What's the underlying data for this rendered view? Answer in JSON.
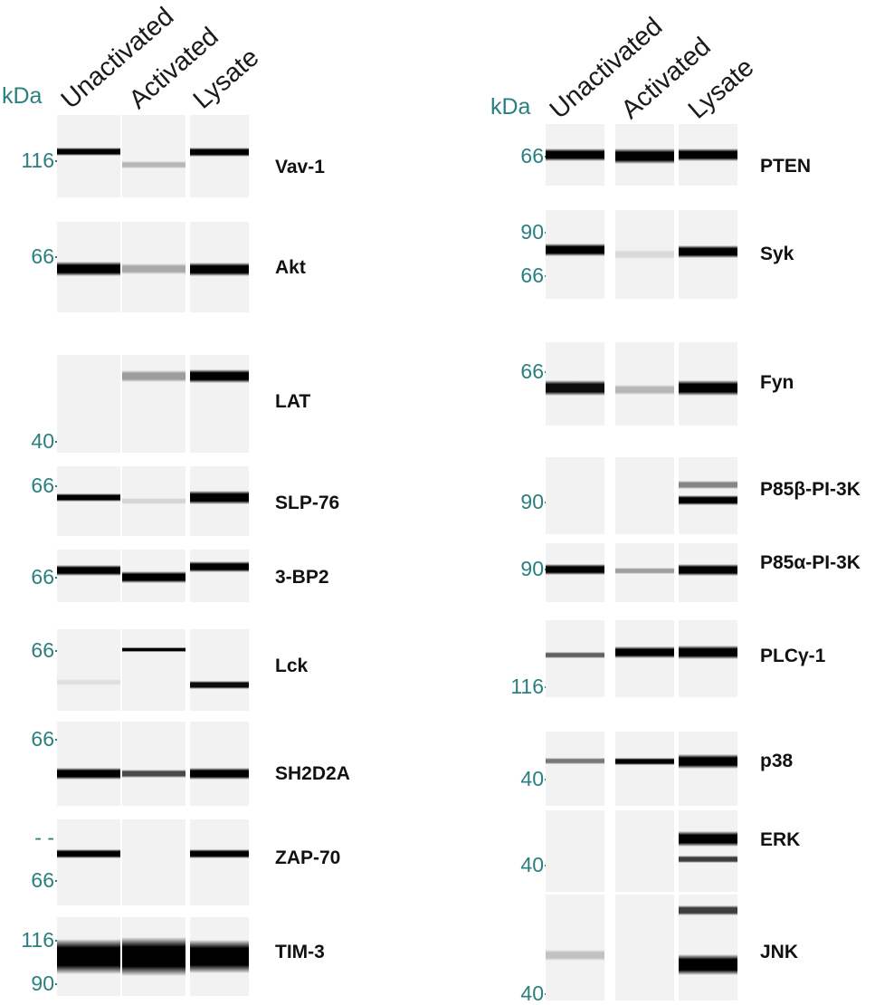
{
  "panels": [
    {
      "id": "left",
      "unit_label": "kDa",
      "lanes": [
        "Unactivated",
        "Activated",
        "Lysate"
      ],
      "blots": [
        {
          "protein": "Vav-1",
          "markers": [
            "116"
          ],
          "bands": [
            [
              {
                "pos": 0.45,
                "w": 0.1,
                "i": 1.0
              }
            ],
            [
              {
                "pos": 0.6,
                "w": 0.09,
                "i": 0.25
              }
            ],
            [
              {
                "pos": 0.45,
                "w": 0.11,
                "i": 1.0
              }
            ]
          ]
        },
        {
          "protein": "Akt",
          "markers": [
            "66"
          ],
          "bands": [
            [
              {
                "pos": 0.52,
                "w": 0.16,
                "i": 1.0
              }
            ],
            [
              {
                "pos": 0.52,
                "w": 0.12,
                "i": 0.3
              }
            ],
            [
              {
                "pos": 0.52,
                "w": 0.15,
                "i": 1.0
              }
            ]
          ]
        },
        {
          "protein": "LAT",
          "markers": [
            "40"
          ],
          "bands": [
            [],
            [
              {
                "pos": 0.22,
                "w": 0.12,
                "i": 0.35
              }
            ],
            [
              {
                "pos": 0.22,
                "w": 0.14,
                "i": 1.0
              }
            ]
          ]
        },
        {
          "protein": "SLP-76",
          "markers": [
            "66"
          ],
          "bands": [
            [
              {
                "pos": 0.45,
                "w": 0.12,
                "i": 1.0
              }
            ],
            [
              {
                "pos": 0.5,
                "w": 0.08,
                "i": 0.12
              }
            ],
            [
              {
                "pos": 0.45,
                "w": 0.2,
                "i": 1.0
              }
            ]
          ]
        },
        {
          "protein": "3-BP2",
          "markers": [
            "66"
          ],
          "bands": [
            [
              {
                "pos": 0.4,
                "w": 0.2,
                "i": 1.0
              }
            ],
            [
              {
                "pos": 0.52,
                "w": 0.22,
                "i": 1.0
              }
            ],
            [
              {
                "pos": 0.33,
                "w": 0.2,
                "i": 1.0
              }
            ]
          ]
        },
        {
          "protein": "Lck",
          "markers": [
            "66"
          ],
          "bands": [
            [
              {
                "pos": 0.65,
                "w": 0.08,
                "i": 0.08
              }
            ],
            [
              {
                "pos": 0.25,
                "w": 0.06,
                "i": 1.0
              }
            ],
            [
              {
                "pos": 0.68,
                "w": 0.1,
                "i": 0.95
              }
            ]
          ]
        },
        {
          "protein": "SH2D2A",
          "markers": [
            "66"
          ],
          "bands": [
            [
              {
                "pos": 0.62,
                "w": 0.14,
                "i": 1.0
              }
            ],
            [
              {
                "pos": 0.62,
                "w": 0.1,
                "i": 0.7
              }
            ],
            [
              {
                "pos": 0.62,
                "w": 0.14,
                "i": 1.0
              }
            ]
          ]
        },
        {
          "protein": "ZAP-70",
          "markers": [
            "- -",
            "66"
          ],
          "bands": [
            [
              {
                "pos": 0.4,
                "w": 0.1,
                "i": 1.0
              }
            ],
            [],
            [
              {
                "pos": 0.4,
                "w": 0.11,
                "i": 1.0
              }
            ]
          ]
        },
        {
          "protein": "TIM-3",
          "markers": [
            "116",
            "90"
          ],
          "bands": [
            [
              {
                "pos": 0.5,
                "w": 0.45,
                "i": 1.0
              }
            ],
            [
              {
                "pos": 0.5,
                "w": 0.5,
                "i": 1.0
              }
            ],
            [
              {
                "pos": 0.5,
                "w": 0.42,
                "i": 1.0
              }
            ]
          ]
        }
      ]
    },
    {
      "id": "right",
      "unit_label": "kDa",
      "lanes": [
        "Unactivated",
        "Activated",
        "Lysate"
      ],
      "blots": [
        {
          "protein": "PTEN",
          "markers": [
            "66"
          ],
          "bands": [
            [
              {
                "pos": 0.5,
                "w": 0.2,
                "i": 1.0
              }
            ],
            [
              {
                "pos": 0.52,
                "w": 0.24,
                "i": 1.0
              }
            ],
            [
              {
                "pos": 0.5,
                "w": 0.22,
                "i": 1.0
              }
            ]
          ]
        },
        {
          "protein": "Syk",
          "markers": [
            "90",
            "66"
          ],
          "bands": [
            [
              {
                "pos": 0.45,
                "w": 0.15,
                "i": 1.0
              }
            ],
            [
              {
                "pos": 0.5,
                "w": 0.1,
                "i": 0.1
              }
            ],
            [
              {
                "pos": 0.47,
                "w": 0.15,
                "i": 1.0
              }
            ]
          ]
        },
        {
          "protein": "Fyn",
          "markers": [
            "66"
          ],
          "bands": [
            [
              {
                "pos": 0.55,
                "w": 0.18,
                "i": 0.95
              }
            ],
            [
              {
                "pos": 0.57,
                "w": 0.12,
                "i": 0.25
              }
            ],
            [
              {
                "pos": 0.55,
                "w": 0.18,
                "i": 1.0
              }
            ]
          ]
        },
        {
          "protein": "P85β-PI-3K",
          "markers": [
            "90"
          ],
          "bands": [
            [],
            [],
            [
              {
                "pos": 0.36,
                "w": 0.1,
                "i": 0.45
              },
              {
                "pos": 0.56,
                "w": 0.13,
                "i": 1.0
              }
            ]
          ]
        },
        {
          "protein": "P85α-PI-3K",
          "markers": [
            "90"
          ],
          "bands": [
            [
              {
                "pos": 0.45,
                "w": 0.18,
                "i": 1.0
              }
            ],
            [
              {
                "pos": 0.47,
                "w": 0.12,
                "i": 0.35
              }
            ],
            [
              {
                "pos": 0.45,
                "w": 0.2,
                "i": 1.0
              }
            ]
          ]
        },
        {
          "protein": "PLCγ-1",
          "markers": [
            "116"
          ],
          "bands": [
            [
              {
                "pos": 0.45,
                "w": 0.08,
                "i": 0.6
              }
            ],
            [
              {
                "pos": 0.42,
                "w": 0.15,
                "i": 1.0
              }
            ],
            [
              {
                "pos": 0.42,
                "w": 0.18,
                "i": 1.0
              }
            ]
          ]
        },
        {
          "protein": "p38",
          "markers": [
            "40"
          ],
          "bands": [
            [
              {
                "pos": 0.4,
                "w": 0.09,
                "i": 0.5
              }
            ],
            [
              {
                "pos": 0.4,
                "w": 0.1,
                "i": 1.0
              }
            ],
            [
              {
                "pos": 0.4,
                "w": 0.2,
                "i": 1.0
              }
            ]
          ]
        },
        {
          "protein": "ERK",
          "markers": [
            "40"
          ],
          "bands": [
            [],
            [],
            [
              {
                "pos": 0.35,
                "w": 0.18,
                "i": 1.0
              },
              {
                "pos": 0.6,
                "w": 0.09,
                "i": 0.75
              }
            ]
          ]
        },
        {
          "protein": "JNK",
          "markers": [
            "40"
          ],
          "bands": [
            [
              {
                "pos": 0.57,
                "w": 0.1,
                "i": 0.2
              }
            ],
            [],
            [
              {
                "pos": 0.15,
                "w": 0.1,
                "i": 0.75
              },
              {
                "pos": 0.66,
                "w": 0.2,
                "i": 1.0
              }
            ]
          ]
        }
      ]
    }
  ]
}
